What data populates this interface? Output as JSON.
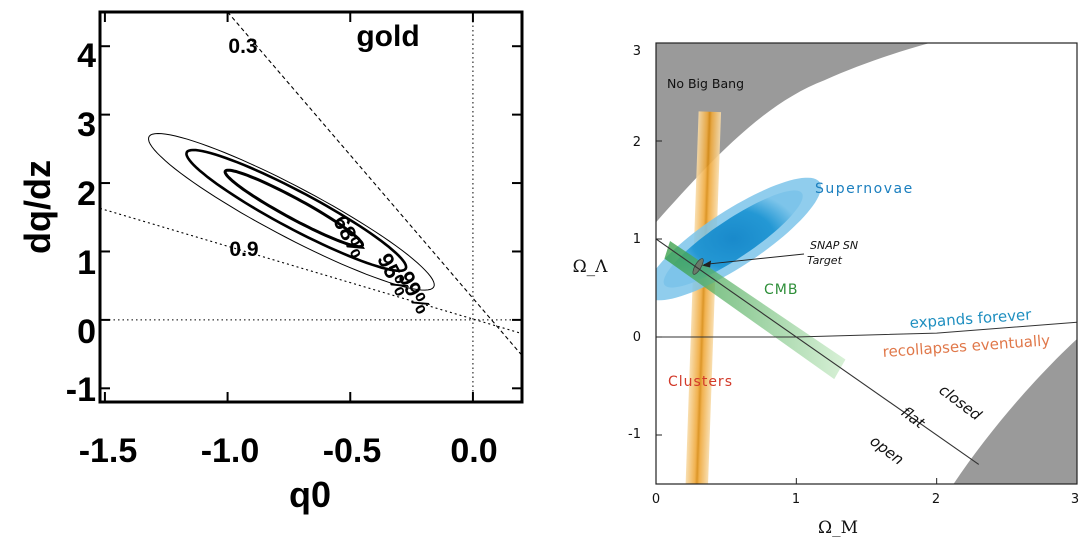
{
  "chart_data": [
    {
      "type": "line",
      "xlabel": "q0",
      "ylabel": "dq/dz",
      "xlim": [
        -1.52,
        0.2
      ],
      "ylim": [
        -1.2,
        4.5
      ],
      "xticks": [
        "-1.5",
        "-1.0",
        "-0.5",
        "0.0"
      ],
      "yticks": [
        "-1",
        "0",
        "1",
        "2",
        "3",
        "4"
      ],
      "annotations": [
        "gold",
        "0.3",
        "0.9",
        "68%",
        "95%",
        "99%"
      ],
      "contours": [
        {
          "name": "68%",
          "center": [
            -0.73,
            1.63
          ],
          "semi_major": 0.62,
          "semi_minor": 0.075,
          "angle_deg": -64
        },
        {
          "name": "95%",
          "center": [
            -0.72,
            1.6
          ],
          "semi_major": 0.98,
          "semi_minor": 0.14,
          "angle_deg": -64
        },
        {
          "name": "99%",
          "center": [
            -0.74,
            1.58
          ],
          "semi_major": 1.27,
          "semi_minor": 0.19,
          "angle_deg": -64
        }
      ],
      "dashed_lines": [
        {
          "label": "0.3",
          "points": [
            [
              -1.0,
              4.5
            ],
            [
              0.2,
              -0.52
            ]
          ]
        },
        {
          "label": "0.9",
          "points": [
            [
              -1.52,
              1.63
            ],
            [
              0.2,
              -0.2
            ]
          ]
        }
      ],
      "reference_lines": {
        "x": 0.0,
        "y": 0.0
      }
    },
    {
      "type": "area",
      "xlabel": "Ω_M",
      "ylabel": "Ω_Λ",
      "xlim": [
        0,
        3
      ],
      "ylim": [
        -1.5,
        3
      ],
      "xticks": [
        "0",
        "1",
        "2",
        "3"
      ],
      "yticks": [
        "3",
        "2",
        "1",
        "0",
        "-1"
      ],
      "annotations": [
        "No Big Bang",
        "Supernovae",
        "SNAP SN",
        "Target",
        "CMB",
        "expands forever",
        "recollapses eventually",
        "Clusters",
        "closed",
        "flat",
        "open"
      ],
      "colors": {
        "supernovae": "#1a8fcf",
        "clusters": "#e8a21c",
        "cmb": "#3fa64a",
        "excluded": "#9a9a9a",
        "expands_text": "#1f8fc0",
        "recollapse_text": "#e0784a",
        "clusters_text": "#d23a2a"
      },
      "regions": [
        {
          "name": "Supernovae",
          "center": [
            0.55,
            1.0
          ],
          "semi_major": 0.85,
          "semi_minor": 0.17,
          "angle_deg": 45
        },
        {
          "name": "Clusters",
          "center": [
            0.33,
            0.1
          ],
          "half_width": 0.08,
          "y_range": [
            -1.5,
            2.3
          ]
        },
        {
          "name": "CMB",
          "from": [
            0.1,
            0.9
          ],
          "to": [
            1.35,
            -0.35
          ]
        },
        {
          "name": "SNAP SN Target",
          "center": [
            0.3,
            0.72
          ]
        }
      ],
      "lines": {
        "flat": [
          [
            0,
            1
          ],
          [
            2.3,
            -1.3
          ]
        ],
        "expands_boundary": [
          [
            0,
            0
          ],
          [
            1,
            0
          ],
          [
            2,
            0.04
          ],
          [
            3,
            0.15
          ]
        ]
      }
    }
  ]
}
